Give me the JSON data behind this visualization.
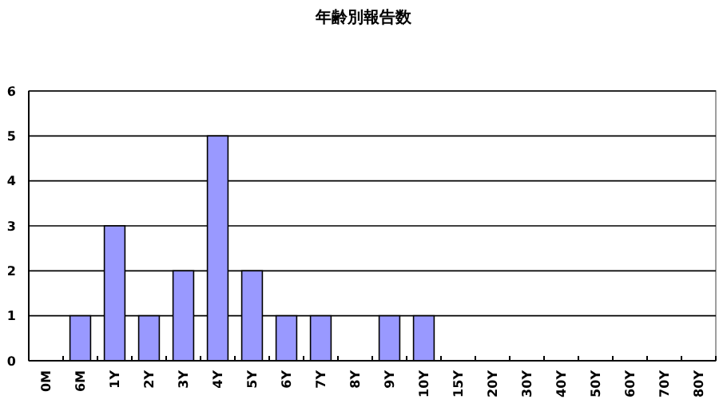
{
  "chart_data": {
    "type": "bar",
    "title": "年齢別報告数",
    "categories": [
      "0M",
      "6M",
      "1Y",
      "2Y",
      "3Y",
      "4Y",
      "5Y",
      "6Y",
      "7Y",
      "8Y",
      "9Y",
      "10Y",
      "15Y",
      "20Y",
      "30Y",
      "40Y",
      "50Y",
      "60Y",
      "70Y",
      "80Y"
    ],
    "values": [
      0,
      1,
      3,
      1,
      2,
      5,
      2,
      1,
      1,
      0,
      1,
      1,
      0,
      0,
      0,
      0,
      0,
      0,
      0,
      0
    ],
    "color": "#9999ff",
    "ylim": [
      0,
      6
    ],
    "yticks": [
      0,
      1,
      2,
      3,
      4,
      5,
      6
    ],
    "grid": "y"
  }
}
